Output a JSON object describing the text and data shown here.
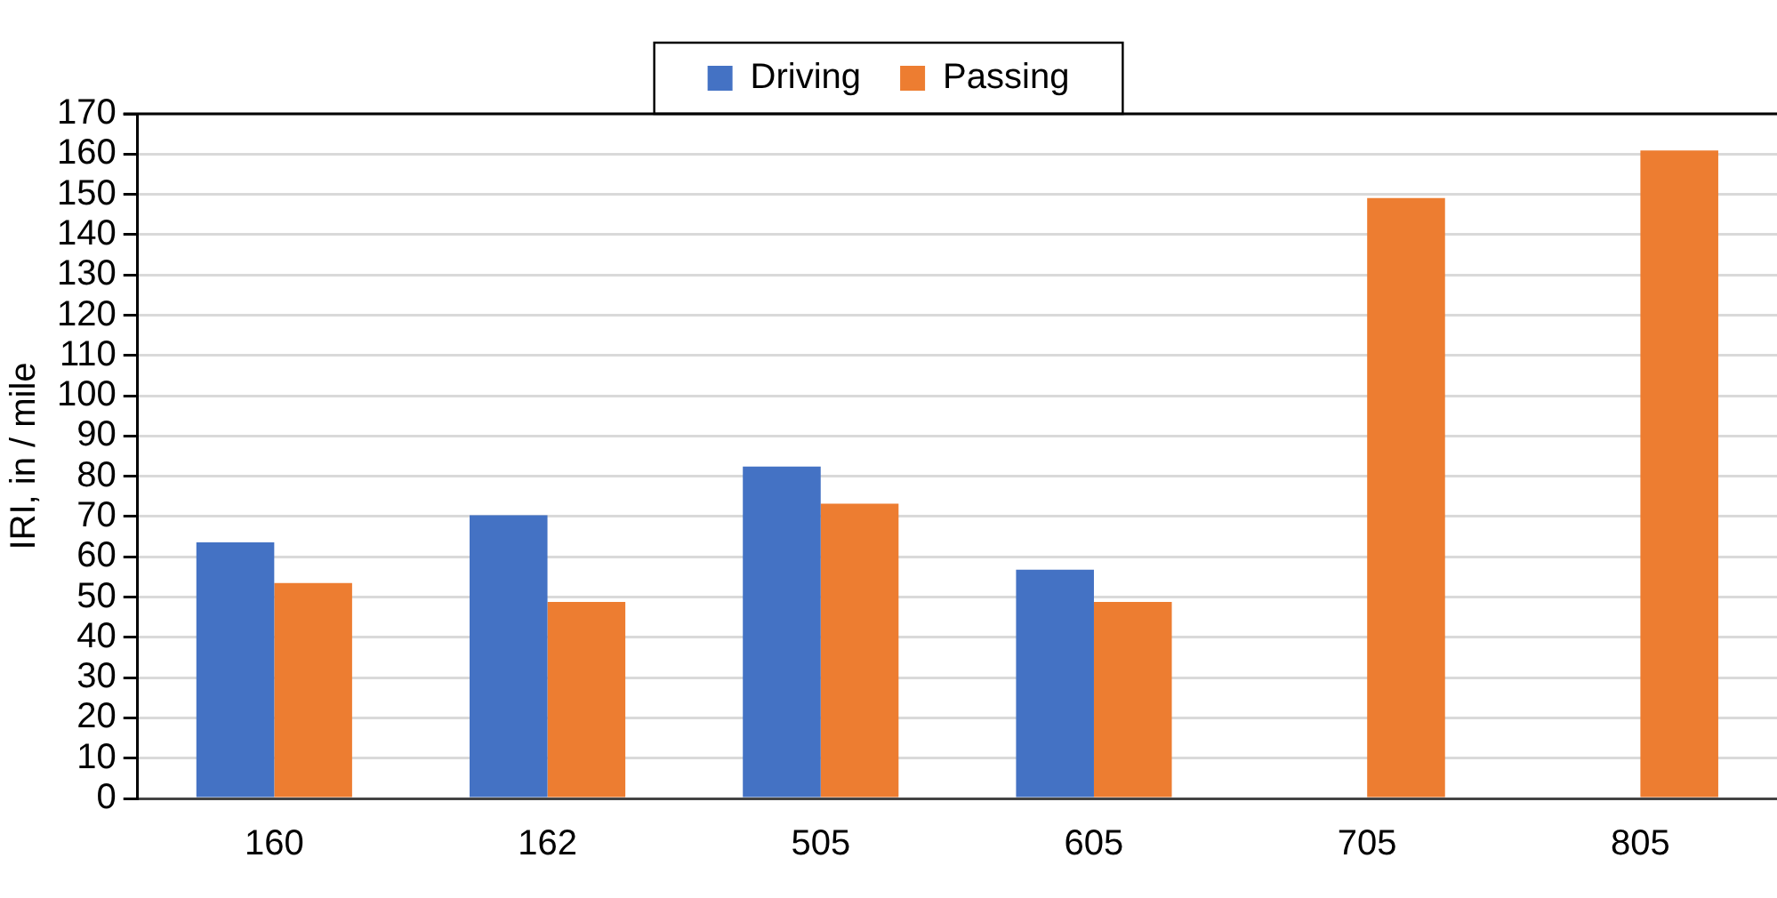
{
  "chart_data": {
    "type": "bar",
    "ylabel": "IRI, in / mile",
    "categories": [
      "160",
      "162",
      "505",
      "605",
      "705",
      "805"
    ],
    "series": [
      {
        "name": "Driving",
        "color": "#4472c4",
        "values": [
          63.6,
          70.3,
          82.4,
          56.8,
          null,
          null
        ]
      },
      {
        "name": "Passing",
        "color": "#ed7d31",
        "values": [
          53.5,
          48.8,
          73.2,
          48.8,
          149.1,
          160.9
        ]
      }
    ],
    "ylim": [
      0,
      170
    ],
    "yticks": [
      0,
      10,
      20,
      30,
      40,
      50,
      60,
      70,
      80,
      90,
      100,
      110,
      120,
      130,
      140,
      150,
      160,
      170
    ],
    "grid": "y",
    "legend": "top"
  }
}
